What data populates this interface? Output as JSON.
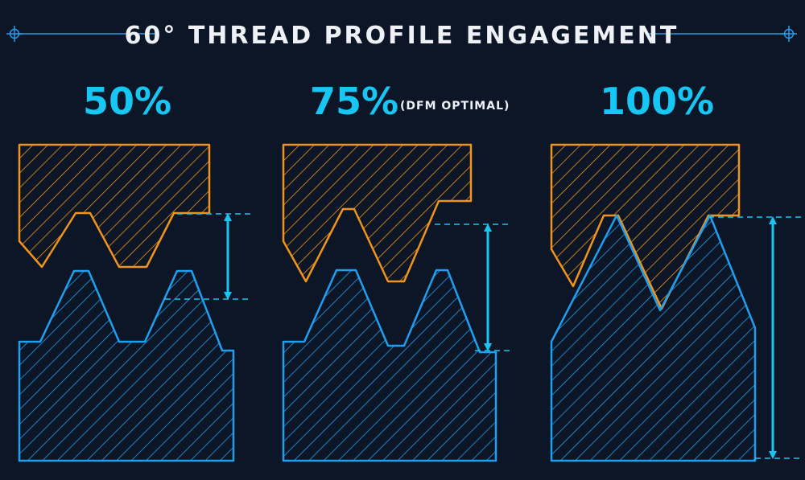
{
  "title": "60° THREAD PROFILE ENGAGEMENT",
  "colors": {
    "background": "#0c1626",
    "internal_thread": "#f0941c",
    "external_thread": "#1f9ff0",
    "accent": "#17c6f2",
    "title_text": "#eef1f5"
  },
  "panels": [
    {
      "label": "50%",
      "note": "",
      "engagement_pct": 50
    },
    {
      "label": "75%",
      "note": "(DFM OPTIMAL)",
      "engagement_pct": 75
    },
    {
      "label": "100%",
      "note": "",
      "engagement_pct": 100
    }
  ]
}
